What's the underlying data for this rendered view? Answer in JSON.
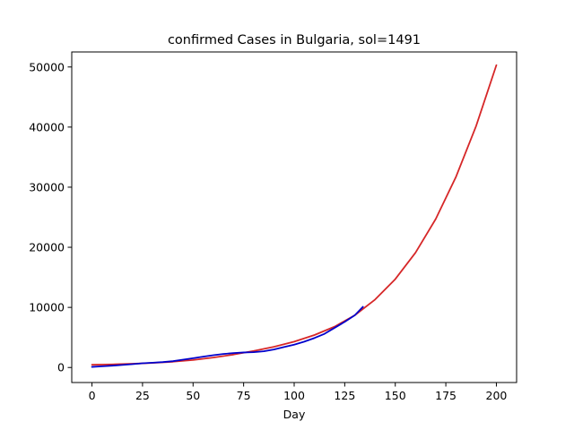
{
  "chart_data": {
    "type": "line",
    "title": "confirmed Cases in Bulgaria, sol=1491",
    "xlabel": "Day",
    "ylabel": "",
    "xlim": [
      -10,
      210
    ],
    "ylim": [
      -2500,
      52500
    ],
    "x_ticks": [
      0,
      25,
      50,
      75,
      100,
      125,
      150,
      175,
      200
    ],
    "y_ticks": [
      0,
      10000,
      20000,
      30000,
      40000,
      50000
    ],
    "grid": false,
    "legend": "none",
    "series": [
      {
        "color": "#d62728",
        "x": [
          0,
          10,
          20,
          30,
          40,
          50,
          60,
          70,
          80,
          90,
          100,
          110,
          120,
          130,
          140,
          150,
          160,
          170,
          180,
          190,
          200
        ],
        "y": [
          450,
          520,
          620,
          760,
          960,
          1250,
          1650,
          2150,
          2750,
          3450,
          4300,
          5400,
          6800,
          8700,
          11300,
          14700,
          19100,
          24700,
          31700,
          40200,
          50300
        ]
      },
      {
        "color": "#0000cc",
        "x": [
          0,
          5,
          10,
          15,
          20,
          25,
          30,
          35,
          40,
          45,
          50,
          55,
          60,
          65,
          70,
          75,
          80,
          85,
          90,
          95,
          100,
          105,
          110,
          115,
          120,
          125,
          130,
          134
        ],
        "y": [
          100,
          200,
          300,
          420,
          550,
          700,
          800,
          900,
          1050,
          1300,
          1550,
          1800,
          2050,
          2250,
          2400,
          2500,
          2550,
          2700,
          3000,
          3400,
          3800,
          4300,
          4900,
          5600,
          6600,
          7600,
          8700,
          10100
        ]
      }
    ]
  }
}
